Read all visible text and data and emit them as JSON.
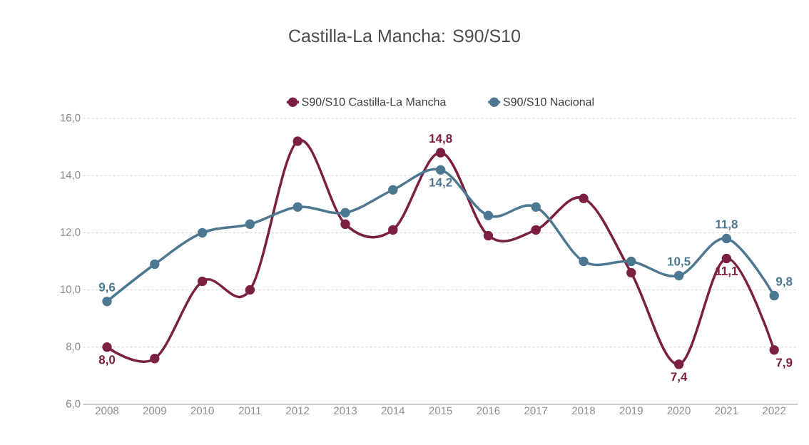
{
  "chart_data": {
    "type": "line",
    "title": "Castilla-La Mancha: S90/S10",
    "categories": [
      "2008",
      "2009",
      "2010",
      "2011",
      "2012",
      "2013",
      "2014",
      "2015",
      "2016",
      "2017",
      "2018",
      "2019",
      "2020",
      "2021",
      "2022"
    ],
    "series": [
      {
        "name": "S90/S10 Castilla-La Mancha",
        "color": "#7b1f43",
        "values": [
          8.0,
          7.6,
          10.3,
          10.0,
          15.2,
          12.3,
          12.1,
          14.8,
          11.9,
          12.1,
          13.2,
          10.6,
          7.4,
          11.1,
          7.9
        ],
        "value_labels": [
          "8,0",
          null,
          null,
          null,
          null,
          null,
          null,
          "14,8",
          null,
          null,
          null,
          null,
          "7,4",
          "11,1",
          "7,9"
        ]
      },
      {
        "name": "S90/S10 Nacional",
        "color": "#4d7891",
        "values": [
          9.6,
          10.9,
          12.0,
          12.3,
          12.9,
          12.7,
          13.5,
          14.2,
          12.6,
          12.9,
          11.0,
          11.0,
          10.5,
          11.8,
          9.8
        ],
        "value_labels": [
          "9,6",
          null,
          null,
          null,
          null,
          null,
          null,
          "14,2",
          null,
          null,
          null,
          null,
          "10,5",
          "11,8",
          "9,8"
        ]
      }
    ],
    "ylim": [
      6,
      16
    ],
    "yticks": [
      {
        "value": 6,
        "label": "6,0"
      },
      {
        "value": 8,
        "label": "8,0"
      },
      {
        "value": 10,
        "label": "10,0"
      },
      {
        "value": 12,
        "label": "12,0"
      },
      {
        "value": 14,
        "label": "14,0"
      },
      {
        "value": 16,
        "label": "16,0"
      }
    ],
    "grid": "y",
    "legend": "top",
    "marker": "circle",
    "line_style": "solid"
  }
}
